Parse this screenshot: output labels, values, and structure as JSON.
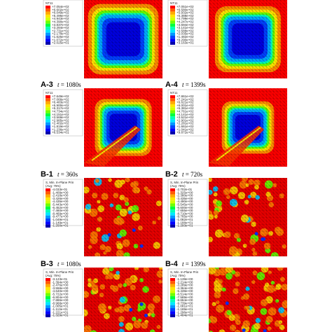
{
  "figure": {
    "panels": [
      {
        "id": "A-1",
        "label": "",
        "time": "",
        "legend": {
          "title": [
            "NT11"
          ],
          "values": [
            "+7.054e+02",
            "+6.602e+02",
            "+6.049e+02",
            "+5.496e+02",
            "+4.943e+02",
            "+4.390e+02",
            "+3.837e+02",
            "+3.284e+02",
            "+2.731e+02",
            "+2.178e+02",
            "+1.625e+02",
            "+1.072e+02",
            "+2.025e+01"
          ]
        },
        "field": {
          "kind": "thermal",
          "cold_fraction": 0.62,
          "cut": false
        }
      },
      {
        "id": "A-2",
        "label": "",
        "time": "",
        "legend": {
          "title": [
            "NT11"
          ],
          "values": [
            "+7.051e+02",
            "+6.580e+02",
            "+5.932e+02",
            "+5.388e+02",
            "+4.799e+02",
            "+4.247e+02",
            "+3.694e+02",
            "+3.141e+02",
            "+2.588e+02",
            "+2.035e+02",
            "+1.482e+02",
            "+9.290e+01",
            "+3.163e+01"
          ]
        },
        "field": {
          "kind": "thermal",
          "cold_fraction": 0.58,
          "cut": false
        }
      },
      {
        "id": "A-3",
        "label": "A-3",
        "time": "= 1080s",
        "legend": {
          "title": [
            "NT11"
          ],
          "values": [
            "+7.649e+02",
            "+7.066e+02",
            "+6.483e+02",
            "+5.900e+02",
            "+5.317e+02",
            "+4.734e+02",
            "+4.151e+02",
            "+3.568e+02",
            "+2.985e+02",
            "+2.402e+02",
            "+1.819e+02",
            "+1.236e+02",
            "+6.534e+01"
          ]
        },
        "field": {
          "kind": "thermal",
          "cold_fraction": 0.5,
          "cut": true
        }
      },
      {
        "id": "A-4",
        "label": "A-4",
        "time": "= 1399s",
        "legend": {
          "title": [
            "NT11"
          ],
          "values": [
            "+7.861e+02",
            "+7.241e+02",
            "+6.621e+02",
            "+6.001e+02",
            "+5.381e+02",
            "+4.761e+02",
            "+4.141e+02",
            "+3.521e+02",
            "+2.901e+02",
            "+2.281e+02",
            "+1.661e+02",
            "+1.041e+02",
            "+9.872e+01"
          ]
        },
        "field": {
          "kind": "thermal",
          "cold_fraction": 0.46,
          "cut": true
        }
      },
      {
        "id": "B-1",
        "label": "B-1",
        "time": "= 360s",
        "legend": {
          "title": [
            "S, Min. In-Plane Prin",
            "(Avg: 75%)"
          ],
          "values": [
            "-4.033e-01",
            "-1.409e+00",
            "-2.418e+00",
            "-3.426e+00",
            "-4.435e+00",
            "-5.443e+00",
            "-6.452e+00",
            "-7.460e+00",
            "-8.469e+00",
            "-9.477e+00",
            "-1.049e+01",
            "-1.149e+01",
            "-1.250e+01"
          ]
        },
        "field": {
          "kind": "stress",
          "density": 0.18
        }
      },
      {
        "id": "B-2",
        "label": "B-2",
        "time": "= 720s",
        "legend": {
          "title": [
            "S, Min. In-Plane Prin",
            "(Avg: 75%)"
          ],
          "values": [
            "-2.702e-01",
            "-1.325e+00",
            "-2.380e+00",
            "-3.435e+00",
            "-4.490e+00",
            "-5.545e+00",
            "-6.600e+00",
            "-7.655e+00",
            "-8.710e+00",
            "-9.765e+00",
            "-1.082e+01",
            "-1.188e+01",
            "-1.293e+01"
          ]
        },
        "field": {
          "kind": "stress",
          "density": 0.22
        }
      },
      {
        "id": "B-3",
        "label": "B-3",
        "time": "= 1080s",
        "legend": {
          "title": [
            "S, Min. In-Plane Prin",
            "(Avg: 75%)"
          ],
          "values": [
            "-3.123e-01",
            "-1.394e+00",
            "-2.476e+00",
            "-3.558e+00",
            "-4.640e+00",
            "-5.722e+00",
            "-6.804e+00",
            "-7.886e+00",
            "-8.968e+00",
            "-1.005e+01",
            "-1.113e+01",
            "-1.221e+01",
            "-1.329e+01"
          ]
        },
        "field": {
          "kind": "stress",
          "density": 0.34
        }
      },
      {
        "id": "B-4",
        "label": "B-4",
        "time": "= 1399s",
        "legend": {
          "title": [
            "S, Min. In-Plane Prin",
            "(Avg: 75%)"
          ],
          "values": [
            "-1.139e+00",
            "-2.214e+00",
            "-3.289e+00",
            "-4.364e+00",
            "-5.439e+00",
            "-6.514e+00",
            "-7.589e+00",
            "-8.664e+00",
            "-9.739e+00",
            "-1.081e+01",
            "-1.189e+01",
            "-1.296e+01",
            "-1.404e+01"
          ]
        },
        "field": {
          "kind": "stress",
          "density": 0.38
        }
      }
    ],
    "time_symbol": "t",
    "colormap": [
      "#ff0000",
      "#ff5a00",
      "#ffaa00",
      "#ffe600",
      "#d2ff00",
      "#6eff00",
      "#00ff3c",
      "#00ffb4",
      "#00e6ff",
      "#0096ff",
      "#0046ff",
      "#0000ff",
      "#0000aa"
    ]
  }
}
